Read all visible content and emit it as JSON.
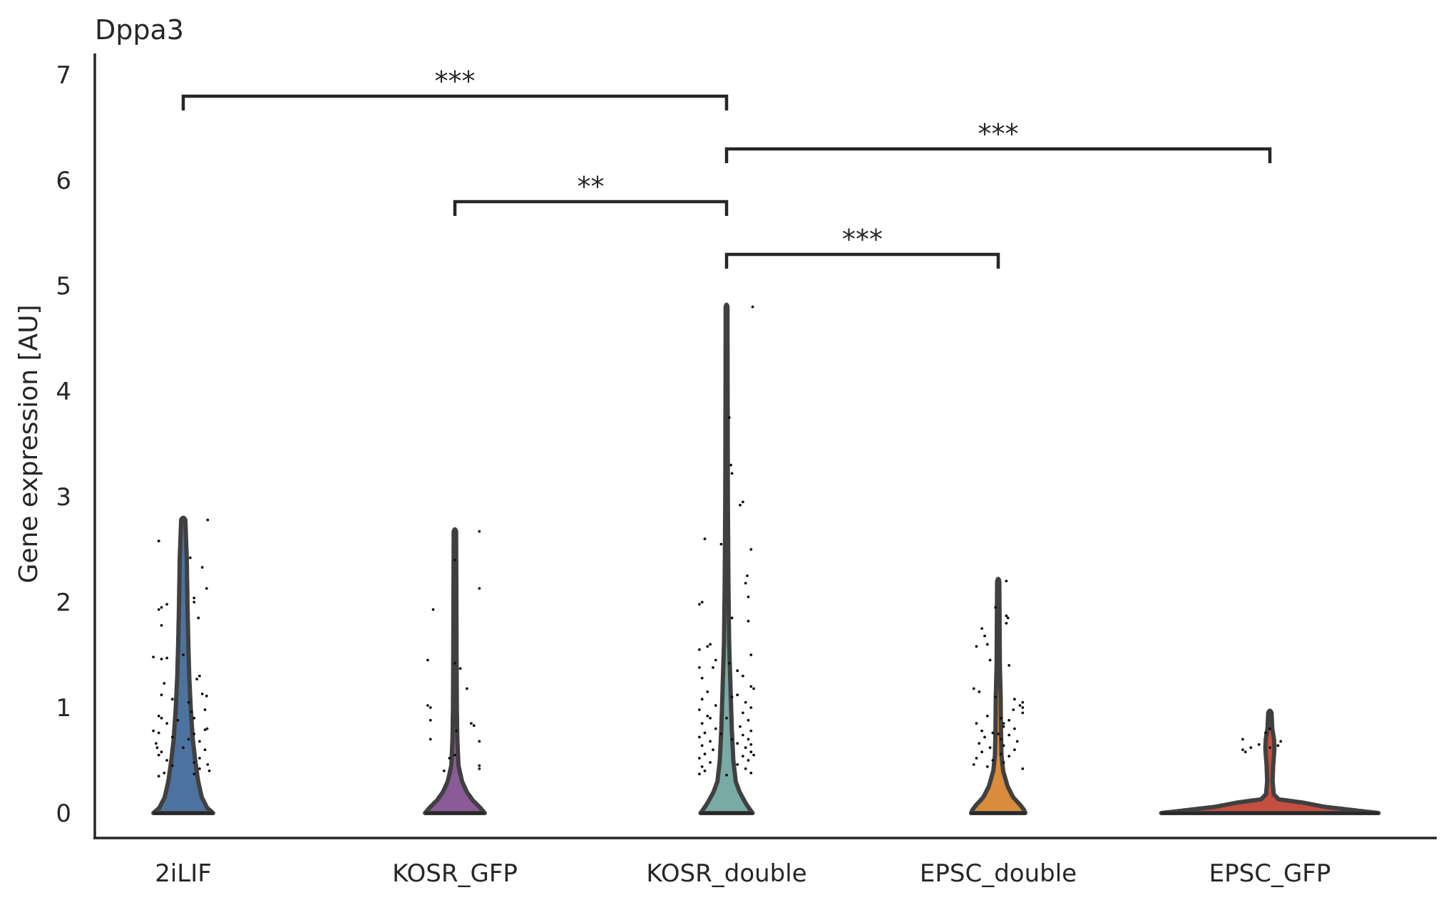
{
  "chart_data": {
    "type": "violin",
    "title": "Dppa3",
    "ylabel": "Gene expression [AU]",
    "xlabel": "",
    "ylim": [
      -0.23,
      7.25
    ],
    "yticks": [
      0,
      1,
      2,
      3,
      4,
      5,
      6,
      7
    ],
    "grid": false,
    "categories": [
      "2iLIF",
      "KOSR_GFP",
      "KOSR_double",
      "EPSC_double",
      "EPSC_GFP"
    ],
    "series": [
      {
        "category": "2iLIF",
        "color": "#4c72a0",
        "max": 2.78,
        "halfwidth": 0.055,
        "profile": [
          [
            0,
            1.0
          ],
          [
            0.05,
            0.8
          ],
          [
            0.15,
            0.62
          ],
          [
            0.3,
            0.5
          ],
          [
            0.5,
            0.4
          ],
          [
            0.7,
            0.32
          ],
          [
            1.0,
            0.25
          ],
          [
            1.3,
            0.2
          ],
          [
            1.6,
            0.17
          ],
          [
            2.0,
            0.14
          ],
          [
            2.4,
            0.12
          ],
          [
            2.78,
            0.07
          ]
        ],
        "points": [
          [
            2.58,
            -0.045
          ],
          [
            2.78,
            0.045
          ],
          [
            2.42,
            0.013
          ],
          [
            2.33,
            0.035
          ],
          [
            2.13,
            0.043
          ],
          [
            2.04,
            0.02
          ],
          [
            2.0,
            0.02
          ],
          [
            1.98,
            -0.03
          ],
          [
            1.95,
            -0.04
          ],
          [
            1.93,
            -0.045
          ],
          [
            1.85,
            0.028
          ],
          [
            1.78,
            -0.04
          ],
          [
            1.5,
            0.0
          ],
          [
            1.48,
            -0.055
          ],
          [
            1.47,
            -0.03
          ],
          [
            1.46,
            -0.04
          ],
          [
            1.3,
            0.03
          ],
          [
            1.27,
            0.025
          ],
          [
            1.23,
            -0.035
          ],
          [
            1.13,
            0.035
          ],
          [
            1.11,
            0.043
          ],
          [
            1.12,
            -0.04
          ],
          [
            1.08,
            -0.02
          ],
          [
            1.05,
            0.01
          ],
          [
            0.98,
            0.04
          ],
          [
            0.96,
            0.015
          ],
          [
            0.92,
            -0.045
          ],
          [
            0.9,
            -0.04
          ],
          [
            0.88,
            -0.01
          ],
          [
            0.85,
            -0.03
          ],
          [
            0.8,
            0.044
          ],
          [
            0.79,
            0.04
          ],
          [
            0.78,
            -0.055
          ],
          [
            0.76,
            -0.045
          ],
          [
            0.75,
            0.02
          ],
          [
            0.72,
            -0.02
          ],
          [
            0.7,
            0.01
          ],
          [
            0.68,
            0.03
          ],
          [
            0.66,
            -0.05
          ],
          [
            0.62,
            0.0
          ],
          [
            0.6,
            0.04
          ],
          [
            0.58,
            -0.04
          ],
          [
            0.55,
            -0.045
          ],
          [
            0.52,
            0.03
          ],
          [
            0.5,
            -0.03
          ],
          [
            0.48,
            0.02
          ],
          [
            0.46,
            0.045
          ],
          [
            0.45,
            -0.02
          ],
          [
            0.42,
            0.03
          ],
          [
            0.4,
            0.048
          ],
          [
            0.38,
            -0.035
          ],
          [
            0.37,
            0.02
          ],
          [
            0.35,
            -0.045
          ],
          [
            0.62,
            -0.048
          ],
          [
            0.9,
            0.02
          ]
        ]
      },
      {
        "category": "KOSR_GFP",
        "color": "#8a5b97",
        "max": 2.67,
        "halfwidth": 0.055,
        "profile": [
          [
            0,
            1.0
          ],
          [
            0.05,
            0.85
          ],
          [
            0.12,
            0.6
          ],
          [
            0.2,
            0.4
          ],
          [
            0.3,
            0.24
          ],
          [
            0.45,
            0.12
          ],
          [
            0.7,
            0.08
          ],
          [
            1.0,
            0.065
          ],
          [
            1.5,
            0.055
          ],
          [
            2.0,
            0.05
          ],
          [
            2.67,
            0.04
          ]
        ],
        "points": [
          [
            2.67,
            0.045
          ],
          [
            2.4,
            0.0
          ],
          [
            2.13,
            0.045
          ],
          [
            1.93,
            -0.04
          ],
          [
            1.45,
            -0.05
          ],
          [
            1.42,
            0.0
          ],
          [
            1.37,
            0.01
          ],
          [
            1.18,
            0.022
          ],
          [
            1.02,
            -0.05
          ],
          [
            1.0,
            -0.045
          ],
          [
            0.88,
            -0.045
          ],
          [
            0.85,
            0.03
          ],
          [
            0.83,
            0.035
          ],
          [
            0.78,
            0.003
          ],
          [
            0.7,
            -0.045
          ],
          [
            0.68,
            0.045
          ],
          [
            0.55,
            0.0
          ],
          [
            0.52,
            -0.01
          ],
          [
            0.45,
            0.045
          ],
          [
            0.42,
            0.045
          ],
          [
            0.4,
            -0.02
          ]
        ]
      },
      {
        "category": "KOSR_double",
        "color": "#7aaaa5",
        "max": 4.8,
        "halfwidth": 0.048,
        "profile": [
          [
            0,
            1.0
          ],
          [
            0.05,
            0.85
          ],
          [
            0.1,
            0.72
          ],
          [
            0.2,
            0.5
          ],
          [
            0.3,
            0.35
          ],
          [
            0.5,
            0.26
          ],
          [
            0.8,
            0.2
          ],
          [
            1.2,
            0.15
          ],
          [
            1.6,
            0.1
          ],
          [
            2.2,
            0.07
          ],
          [
            3.0,
            0.05
          ],
          [
            4.0,
            0.04
          ],
          [
            4.8,
            0.035
          ]
        ],
        "points": [
          [
            4.8,
            0.048
          ],
          [
            3.75,
            0.005
          ],
          [
            3.3,
            0.008
          ],
          [
            3.22,
            0.01
          ],
          [
            2.95,
            0.03
          ],
          [
            2.92,
            0.025
          ],
          [
            2.6,
            -0.04
          ],
          [
            2.55,
            -0.01
          ],
          [
            2.5,
            0.045
          ],
          [
            2.25,
            0.038
          ],
          [
            2.18,
            0.035
          ],
          [
            2.05,
            0.04
          ],
          [
            2.0,
            -0.045
          ],
          [
            1.98,
            -0.05
          ],
          [
            1.85,
            0.01
          ],
          [
            1.82,
            0.04
          ],
          [
            1.6,
            -0.03
          ],
          [
            1.58,
            -0.035
          ],
          [
            1.55,
            -0.05
          ],
          [
            1.5,
            0.045
          ],
          [
            1.45,
            -0.02
          ],
          [
            1.42,
            0.005
          ],
          [
            1.38,
            -0.05
          ],
          [
            1.38,
            -0.025
          ],
          [
            1.35,
            0.02
          ],
          [
            1.3,
            0.03
          ],
          [
            1.28,
            -0.045
          ],
          [
            1.2,
            0.045
          ],
          [
            1.18,
            0.05
          ],
          [
            1.15,
            -0.035
          ],
          [
            1.12,
            0.02
          ],
          [
            1.08,
            -0.045
          ],
          [
            1.05,
            0.035
          ],
          [
            1.02,
            -0.02
          ],
          [
            1.0,
            0.045
          ],
          [
            0.98,
            -0.05
          ],
          [
            0.95,
            0.03
          ],
          [
            0.92,
            -0.035
          ],
          [
            0.9,
            -0.03
          ],
          [
            0.88,
            0.04
          ],
          [
            0.85,
            -0.045
          ],
          [
            0.82,
            0.025
          ],
          [
            0.8,
            -0.02
          ],
          [
            0.78,
            0.045
          ],
          [
            0.76,
            -0.04
          ],
          [
            0.74,
            0.03
          ],
          [
            0.72,
            -0.05
          ],
          [
            0.7,
            0.04
          ],
          [
            0.68,
            -0.03
          ],
          [
            0.66,
            0.02
          ],
          [
            0.64,
            -0.045
          ],
          [
            0.62,
            0.035
          ],
          [
            0.6,
            -0.025
          ],
          [
            0.58,
            0.045
          ],
          [
            0.56,
            -0.04
          ],
          [
            0.54,
            0.03
          ],
          [
            0.52,
            -0.05
          ],
          [
            0.5,
            0.04
          ],
          [
            0.48,
            -0.03
          ],
          [
            0.46,
            0.02
          ],
          [
            0.44,
            -0.045
          ],
          [
            0.42,
            0.035
          ],
          [
            0.4,
            -0.04
          ],
          [
            0.38,
            0.045
          ],
          [
            0.37,
            -0.05
          ],
          [
            0.36,
            0.0
          ],
          [
            0.9,
            0.0
          ],
          [
            0.7,
            0.01
          ],
          [
            0.55,
            0.05
          ],
          [
            1.1,
            0.01
          ],
          [
            0.65,
            0.045
          ],
          [
            0.75,
            -0.01
          ]
        ]
      },
      {
        "category": "EPSC_double",
        "color": "#d98c3c",
        "max": 2.2,
        "halfwidth": 0.05,
        "profile": [
          [
            0,
            1.0
          ],
          [
            0.03,
            0.95
          ],
          [
            0.08,
            0.8
          ],
          [
            0.15,
            0.55
          ],
          [
            0.25,
            0.35
          ],
          [
            0.4,
            0.18
          ],
          [
            0.55,
            0.12
          ],
          [
            0.8,
            0.1
          ],
          [
            1.1,
            0.09
          ],
          [
            1.4,
            0.06
          ],
          [
            1.8,
            0.05
          ],
          [
            2.2,
            0.04
          ]
        ],
        "points": [
          [
            2.2,
            0.015
          ],
          [
            1.95,
            -0.005
          ],
          [
            1.87,
            0.015
          ],
          [
            1.85,
            0.018
          ],
          [
            1.8,
            0.015
          ],
          [
            1.75,
            -0.03
          ],
          [
            1.68,
            -0.025
          ],
          [
            1.6,
            -0.02
          ],
          [
            1.58,
            -0.04
          ],
          [
            1.45,
            -0.015
          ],
          [
            1.4,
            0.02
          ],
          [
            1.18,
            -0.045
          ],
          [
            1.15,
            -0.035
          ],
          [
            1.1,
            -0.005
          ],
          [
            1.08,
            0.03
          ],
          [
            1.05,
            0.045
          ],
          [
            1.02,
            0.04
          ],
          [
            1.0,
            0.045
          ],
          [
            0.98,
            0.028
          ],
          [
            0.95,
            0.045
          ],
          [
            0.92,
            -0.02
          ],
          [
            0.9,
            0.005
          ],
          [
            0.88,
            0.02
          ],
          [
            0.85,
            -0.04
          ],
          [
            0.82,
            0.01
          ],
          [
            0.8,
            0.03
          ],
          [
            0.78,
            -0.03
          ],
          [
            0.76,
            -0.01
          ],
          [
            0.74,
            0.02
          ],
          [
            0.72,
            -0.025
          ],
          [
            0.7,
            0.005
          ],
          [
            0.68,
            0.035
          ],
          [
            0.66,
            -0.035
          ],
          [
            0.64,
            0.01
          ],
          [
            0.62,
            -0.015
          ],
          [
            0.6,
            0.03
          ],
          [
            0.58,
            -0.03
          ],
          [
            0.56,
            0.005
          ],
          [
            0.54,
            0.02
          ],
          [
            0.52,
            -0.04
          ],
          [
            0.5,
            -0.01
          ],
          [
            0.48,
            0.01
          ],
          [
            0.46,
            -0.045
          ],
          [
            0.44,
            -0.02
          ],
          [
            0.42,
            0.045
          ],
          [
            0.75,
            0.0
          ],
          [
            0.85,
            0.01
          ]
        ]
      },
      {
        "category": "EPSC_GFP",
        "color": "#c44e3f",
        "max": 0.95,
        "halfwidth": 0.2,
        "profile": [
          [
            0,
            1.0
          ],
          [
            0.03,
            0.75
          ],
          [
            0.06,
            0.5
          ],
          [
            0.1,
            0.3
          ],
          [
            0.13,
            0.08
          ],
          [
            0.18,
            0.035
          ],
          [
            0.3,
            0.025
          ],
          [
            0.45,
            0.03
          ],
          [
            0.55,
            0.038
          ],
          [
            0.62,
            0.042
          ],
          [
            0.7,
            0.038
          ],
          [
            0.8,
            0.022
          ],
          [
            0.95,
            0.015
          ]
        ],
        "points": [
          [
            0.7,
            -0.05
          ],
          [
            0.76,
            -0.008
          ],
          [
            0.8,
            0.0
          ],
          [
            0.65,
            -0.02
          ],
          [
            0.62,
            -0.035
          ],
          [
            0.6,
            -0.05
          ],
          [
            0.58,
            -0.045
          ],
          [
            0.62,
            0.0
          ],
          [
            0.68,
            0.02
          ],
          [
            0.64,
            0.015
          ]
        ]
      }
    ],
    "annotations": [
      {
        "from": "2iLIF",
        "to": "KOSR_double",
        "y": 6.75,
        "label": "***"
      },
      {
        "from": "KOSR_double",
        "to": "EPSC_GFP",
        "y": 6.25,
        "label": "***"
      },
      {
        "from": "KOSR_GFP",
        "to": "KOSR_double",
        "y": 5.75,
        "label": "**"
      },
      {
        "from": "KOSR_double",
        "to": "EPSC_double",
        "y": 5.25,
        "label": "***"
      }
    ]
  }
}
